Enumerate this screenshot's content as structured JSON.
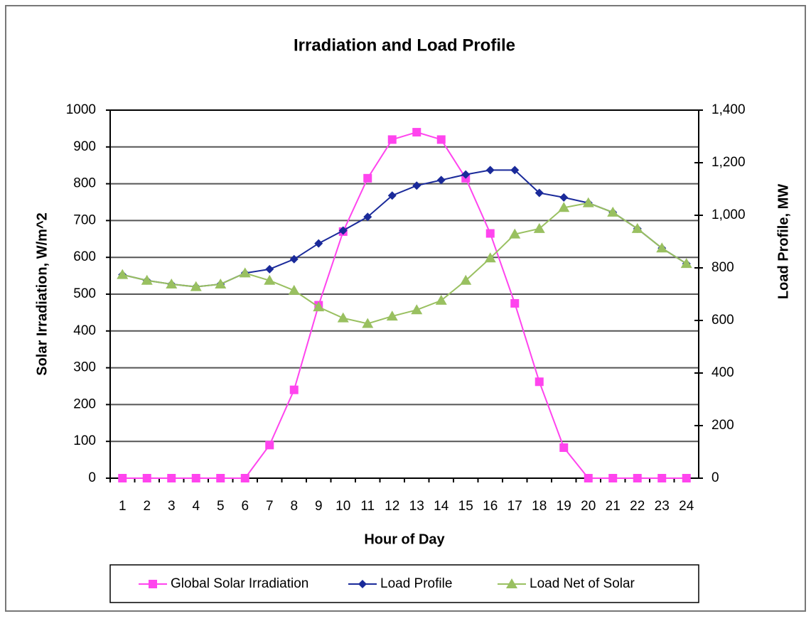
{
  "chart_data": {
    "type": "line",
    "title": "Irradiation and Load Profile",
    "x_label": "Hour of Day",
    "y_label": "Solar Irradiation, W/m^2",
    "y2_label": "Load Profile, MW",
    "categories": [
      1,
      2,
      3,
      4,
      5,
      6,
      7,
      8,
      9,
      10,
      11,
      12,
      13,
      14,
      15,
      16,
      17,
      18,
      19,
      20,
      21,
      22,
      23,
      24
    ],
    "ylim": [
      0,
      1000
    ],
    "yticks": [
      0,
      100,
      200,
      300,
      400,
      500,
      600,
      700,
      800,
      900,
      1000
    ],
    "y2lim": [
      0,
      1400
    ],
    "y2ticks": [
      0,
      200,
      400,
      600,
      800,
      {
        "value": 1000,
        "label": "1,000"
      },
      {
        "value": 1200,
        "label": "1,200"
      },
      {
        "value": 1400,
        "label": "1,400"
      }
    ],
    "grid": true,
    "legend": "bottom",
    "series": [
      {
        "name": "Global Solar Irradiation",
        "color": "#ff44ee",
        "marker": "square",
        "values": [
          0,
          0,
          0,
          0,
          0,
          0,
          90,
          240,
          470,
          670,
          815,
          920,
          940,
          920,
          815,
          665,
          475,
          262,
          83,
          0,
          0,
          0,
          0,
          0
        ]
      },
      {
        "name": "Load Profile",
        "color": "#1a2a9a",
        "marker": "diamond",
        "axis": "y2",
        "values": [
          774,
          752,
          738,
          728,
          738,
          780,
          795,
          833,
          893,
          942,
          994,
          1075,
          1113,
          1134,
          1155,
          1172,
          1172,
          1085,
          1068,
          1047,
          1011,
          949,
          875,
          816
        ]
      },
      {
        "name": "Load Net of Solar",
        "color": "#99c060",
        "marker": "triangle",
        "axis": "y2",
        "values": [
          774,
          752,
          738,
          728,
          738,
          780,
          752,
          714,
          651,
          609,
          588,
          616,
          640,
          676,
          752,
          837,
          928,
          949,
          1029,
          1047,
          1011,
          949,
          875,
          816
        ]
      }
    ]
  }
}
